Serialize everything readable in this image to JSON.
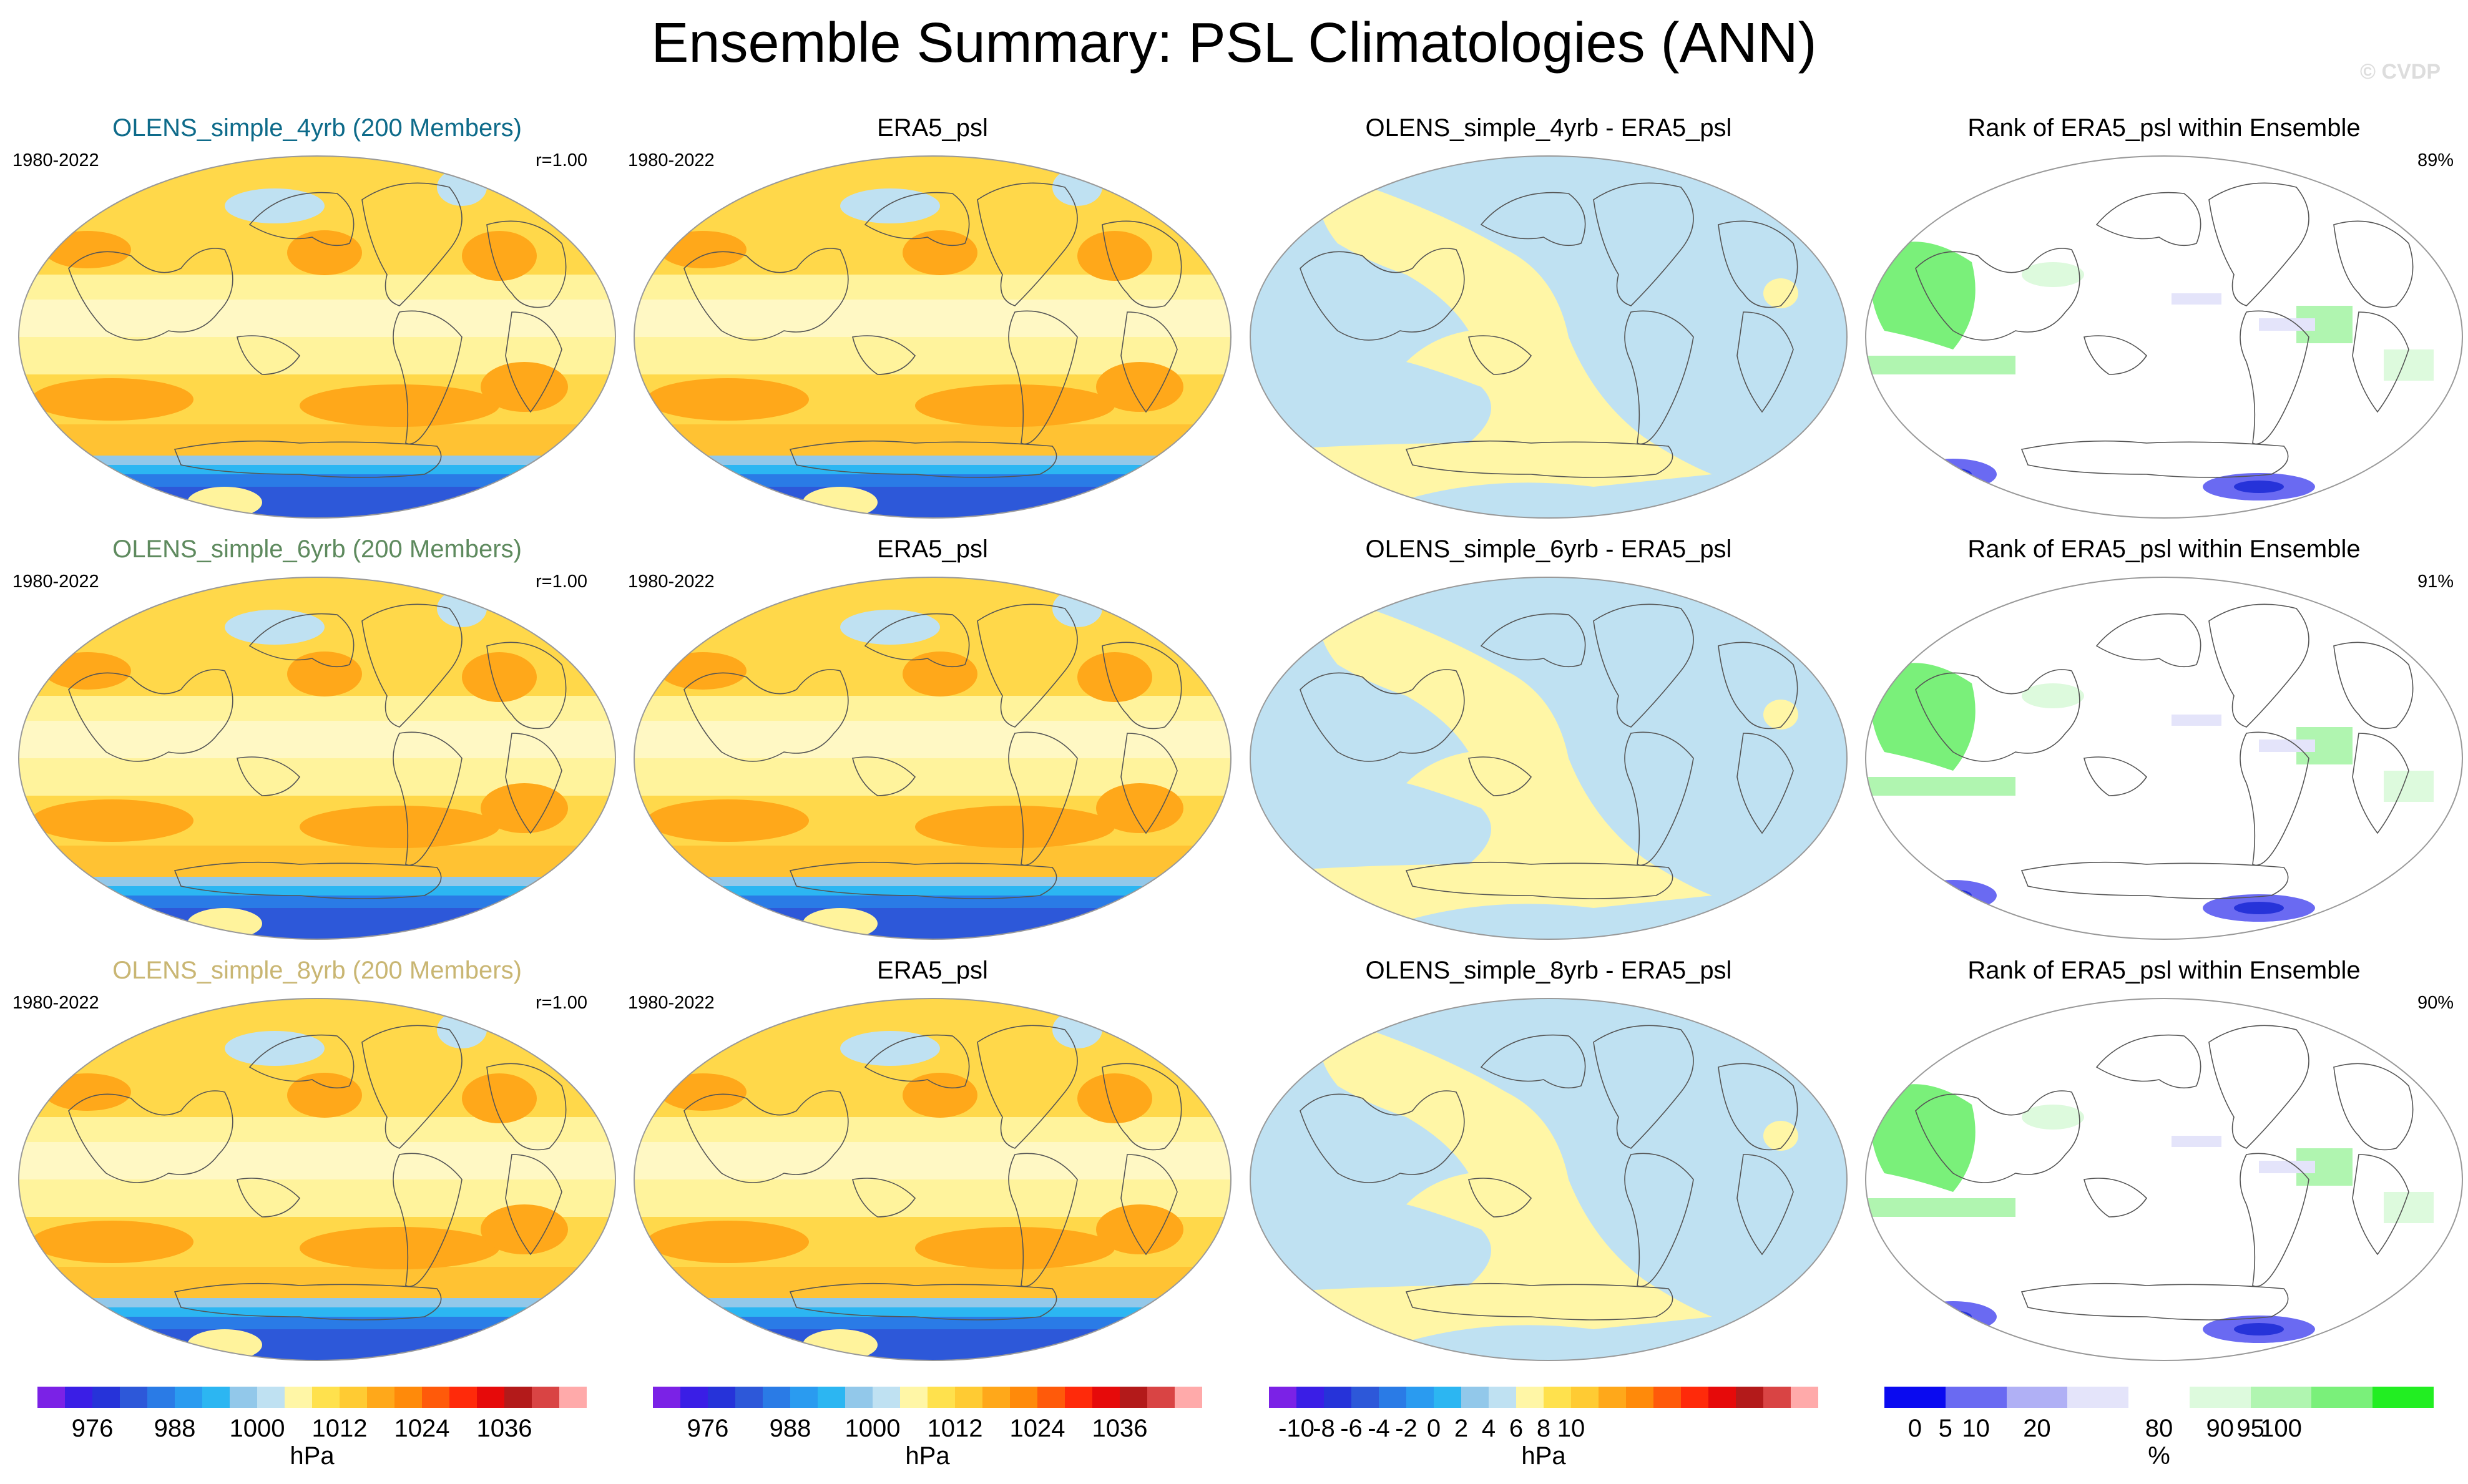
{
  "chart_data": {
    "type": "heatmap",
    "title": "Ensemble Summary: PSL Climatologies (ANN)",
    "copyright": "© CVDP",
    "rows": [
      {
        "ensemble_title": "OLENS_simple_4yrb (200 Members)",
        "title_color": "#0e6b8a",
        "period": "1980-2022",
        "pattern_corr": "r=1.00",
        "obs_title": "ERA5_psl",
        "obs_period": "1980-2022",
        "diff_title": "OLENS_simple_4yrb - ERA5_psl",
        "rank_title": "Rank of ERA5_psl within Ensemble",
        "rank_pct": "89%"
      },
      {
        "ensemble_title": "OLENS_simple_6yrb (200 Members)",
        "title_color": "#5e8a5e",
        "period": "1980-2022",
        "pattern_corr": "r=1.00",
        "obs_title": "ERA5_psl",
        "obs_period": "1980-2022",
        "diff_title": "OLENS_simple_6yrb - ERA5_psl",
        "rank_title": "Rank of ERA5_psl within Ensemble",
        "rank_pct": "91%"
      },
      {
        "ensemble_title": "OLENS_simple_8yrb (200 Members)",
        "title_color": "#c9b673",
        "period": "1980-2022",
        "pattern_corr": "r=1.00",
        "obs_title": "ERA5_psl",
        "obs_period": "1980-2022",
        "diff_title": "OLENS_simple_8yrb - ERA5_psl",
        "rank_title": "Rank of ERA5_psl within Ensemble",
        "rank_pct": "90%"
      }
    ],
    "colorbars": [
      {
        "name": "psl",
        "colors": [
          "#7b22e6",
          "#3a1ee6",
          "#2633d9",
          "#2d58d9",
          "#2a7be6",
          "#2a9bf0",
          "#2cb6f2",
          "#92c8ea",
          "#bfe1f2",
          "#fff6a6",
          "#ffe14d",
          "#ffcb33",
          "#ffa81a",
          "#ff8a0a",
          "#ff5a0a",
          "#ff2a0a",
          "#e60a0a",
          "#b31a1a",
          "#d94444",
          "#ffaaaa"
        ],
        "labels": [
          "976",
          "988",
          "1000",
          "1012",
          "1024",
          "1036"
        ],
        "label_index": [
          2,
          5,
          8,
          11,
          14,
          17
        ],
        "unit": "hPa"
      },
      {
        "name": "psl-obs",
        "colors": [
          "#7b22e6",
          "#3a1ee6",
          "#2633d9",
          "#2d58d9",
          "#2a7be6",
          "#2a9bf0",
          "#2cb6f2",
          "#92c8ea",
          "#bfe1f2",
          "#fff6a6",
          "#ffe14d",
          "#ffcb33",
          "#ffa81a",
          "#ff8a0a",
          "#ff5a0a",
          "#ff2a0a",
          "#e60a0a",
          "#b31a1a",
          "#d94444",
          "#ffaaaa"
        ],
        "labels": [
          "976",
          "988",
          "1000",
          "1012",
          "1024",
          "1036"
        ],
        "label_index": [
          2,
          5,
          8,
          11,
          14,
          17
        ],
        "unit": "hPa"
      },
      {
        "name": "diff",
        "colors": [
          "#7b22e6",
          "#3a1ee6",
          "#2633d9",
          "#2d58d9",
          "#2a7be6",
          "#2a9bf0",
          "#2cb6f2",
          "#92c8ea",
          "#bfe1f2",
          "#fff6a6",
          "#ffe14d",
          "#ffcb33",
          "#ffa81a",
          "#ff8a0a",
          "#ff5a0a",
          "#ff2a0a",
          "#e60a0a",
          "#b31a1a",
          "#d94444",
          "#ffaaaa"
        ],
        "labels": [
          "-10",
          "-8",
          "-6",
          "-4",
          "-2",
          "0",
          "2",
          "4",
          "6",
          "8",
          "10"
        ],
        "label_index": [
          1,
          2,
          3,
          4,
          5,
          6,
          7,
          8,
          9,
          10,
          11
        ],
        "unit": "hPa"
      },
      {
        "name": "rank",
        "colors": [
          "#0a0af0",
          "#6a6af2",
          "#b0b0f5",
          "#e4e4fa",
          "#ffffff",
          "#ddfadd",
          "#b0f5b0",
          "#7af07a",
          "#22ee22"
        ],
        "labels": [
          "0",
          "5",
          "10",
          "20",
          "80",
          "90",
          "95",
          "100"
        ],
        "label_index": [
          0.5,
          1,
          1.5,
          2.5,
          4.5,
          5.5,
          6,
          6.5
        ],
        "unit": "%"
      }
    ]
  }
}
